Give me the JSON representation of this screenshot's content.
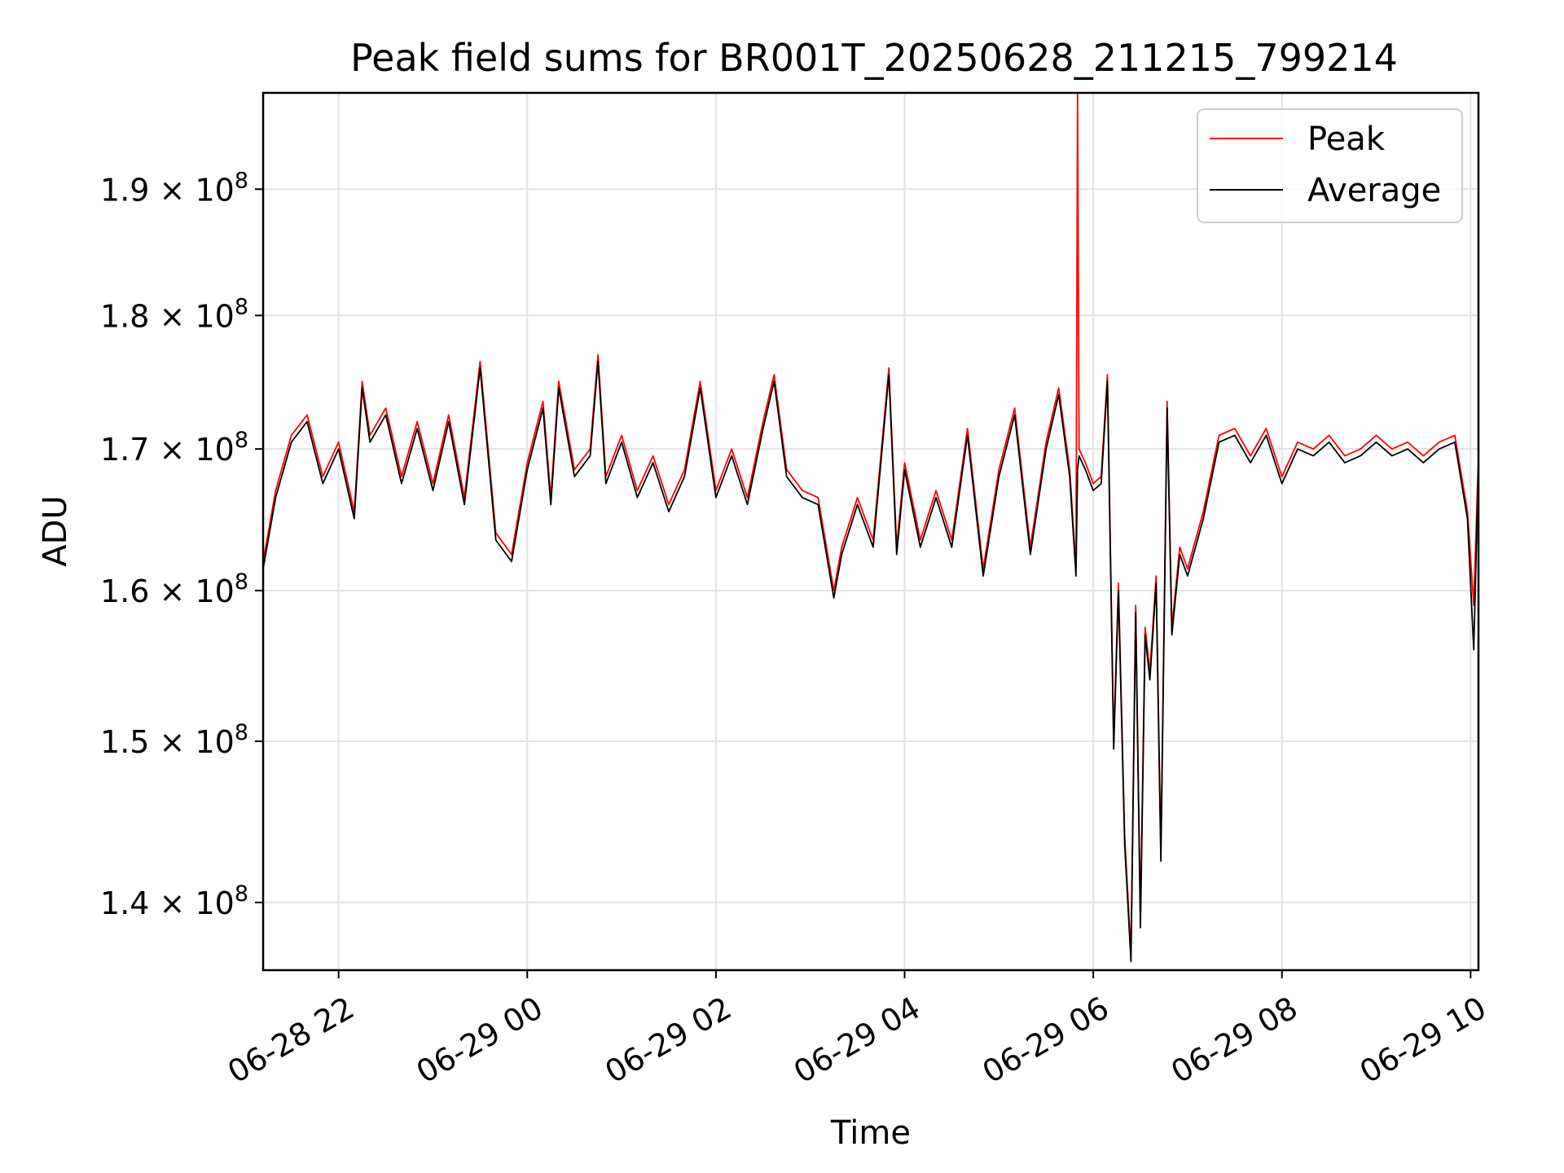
{
  "chart_data": {
    "type": "line",
    "title": "Peak field sums for BR001T_20250628_211215_799214",
    "xlabel": "Time",
    "ylabel": "ADU",
    "x_ticks": [
      "06-28 22",
      "06-29 00",
      "06-29 02",
      "06-29 04",
      "06-29 06",
      "06-29 08",
      "06-29 10"
    ],
    "y_ticks": [
      {
        "mantissa": "1.4",
        "exp": "8",
        "value": 140000000
      },
      {
        "mantissa": "1.5",
        "exp": "8",
        "value": 150000000
      },
      {
        "mantissa": "1.6",
        "exp": "8",
        "value": 160000000
      },
      {
        "mantissa": "1.7",
        "exp": "8",
        "value": 170000000
      },
      {
        "mantissa": "1.8",
        "exp": "8",
        "value": 180000000
      },
      {
        "mantissa": "1.9",
        "exp": "8",
        "value": 190000000
      }
    ],
    "y_scale": "log",
    "ylim": [
      136000000,
      198000000
    ],
    "x_range": [
      "2025-06-28 21:12",
      "2025-06-29 10:05"
    ],
    "grid": true,
    "legend_position": "upper right",
    "series": [
      {
        "name": "Peak",
        "color": "#ff0000",
        "x": [
          "2025-06-28 21:12",
          "2025-06-28 21:20",
          "2025-06-28 21:30",
          "2025-06-28 21:40",
          "2025-06-28 21:50",
          "2025-06-28 22:00",
          "2025-06-28 22:10",
          "2025-06-28 22:15",
          "2025-06-28 22:20",
          "2025-06-28 22:30",
          "2025-06-28 22:40",
          "2025-06-28 22:50",
          "2025-06-28 23:00",
          "2025-06-28 23:10",
          "2025-06-28 23:20",
          "2025-06-28 23:30",
          "2025-06-28 23:40",
          "2025-06-28 23:50",
          "2025-06-29 00:00",
          "2025-06-29 00:10",
          "2025-06-29 00:15",
          "2025-06-29 00:20",
          "2025-06-29 00:30",
          "2025-06-29 00:40",
          "2025-06-29 00:45",
          "2025-06-29 00:50",
          "2025-06-29 01:00",
          "2025-06-29 01:10",
          "2025-06-29 01:20",
          "2025-06-29 01:30",
          "2025-06-29 01:40",
          "2025-06-29 01:50",
          "2025-06-29 02:00",
          "2025-06-29 02:10",
          "2025-06-29 02:20",
          "2025-06-29 02:30",
          "2025-06-29 02:37",
          "2025-06-29 02:45",
          "2025-06-29 02:55",
          "2025-06-29 03:05",
          "2025-06-29 03:15",
          "2025-06-29 03:20",
          "2025-06-29 03:30",
          "2025-06-29 03:40",
          "2025-06-29 03:50",
          "2025-06-29 03:55",
          "2025-06-29 04:00",
          "2025-06-29 04:10",
          "2025-06-29 04:20",
          "2025-06-29 04:30",
          "2025-06-29 04:40",
          "2025-06-29 04:50",
          "2025-06-29 05:00",
          "2025-06-29 05:10",
          "2025-06-29 05:20",
          "2025-06-29 05:30",
          "2025-06-29 05:38",
          "2025-06-29 05:45",
          "2025-06-29 05:49",
          "2025-06-29 05:50",
          "2025-06-29 05:51",
          "2025-06-29 05:55",
          "2025-06-29 06:00",
          "2025-06-29 06:05",
          "2025-06-29 06:09",
          "2025-06-29 06:13",
          "2025-06-29 06:16",
          "2025-06-29 06:20",
          "2025-06-29 06:24",
          "2025-06-29 06:27",
          "2025-06-29 06:30",
          "2025-06-29 06:33",
          "2025-06-29 06:36",
          "2025-06-29 06:40",
          "2025-06-29 06:43",
          "2025-06-29 06:47",
          "2025-06-29 06:50",
          "2025-06-29 06:55",
          "2025-06-29 07:00",
          "2025-06-29 07:10",
          "2025-06-29 07:20",
          "2025-06-29 07:30",
          "2025-06-29 07:40",
          "2025-06-29 07:50",
          "2025-06-29 08:00",
          "2025-06-29 08:10",
          "2025-06-29 08:20",
          "2025-06-29 08:30",
          "2025-06-29 08:40",
          "2025-06-29 08:50",
          "2025-06-29 09:00",
          "2025-06-29 09:10",
          "2025-06-29 09:20",
          "2025-06-29 09:30",
          "2025-06-29 09:40",
          "2025-06-29 09:50",
          "2025-06-29 09:58",
          "2025-06-29 10:02",
          "2025-06-29 10:05"
        ],
        "y": [
          162000000,
          167000000,
          171000000,
          172500000,
          168000000,
          170500000,
          165500000,
          175000000,
          171000000,
          173000000,
          168000000,
          172000000,
          167500000,
          172500000,
          166500000,
          176500000,
          164000000,
          162500000,
          169000000,
          173500000,
          166500000,
          175000000,
          168500000,
          170000000,
          177000000,
          168000000,
          171000000,
          167000000,
          169500000,
          166000000,
          168500000,
          175000000,
          167000000,
          170000000,
          166500000,
          172000000,
          175500000,
          168500000,
          167000000,
          166500000,
          160000000,
          163000000,
          166500000,
          163500000,
          176000000,
          163000000,
          169000000,
          163500000,
          167000000,
          163500000,
          171500000,
          161500000,
          168500000,
          173000000,
          163000000,
          170500000,
          174500000,
          168500000,
          161500000,
          198000000,
          170000000,
          169000000,
          167500000,
          168000000,
          175500000,
          150000000,
          160500000,
          144000000,
          137000000,
          159000000,
          139000000,
          157500000,
          154500000,
          161000000,
          143000000,
          173500000,
          157500000,
          163000000,
          161500000,
          165500000,
          171000000,
          171500000,
          169500000,
          171500000,
          168000000,
          170500000,
          170000000,
          171000000,
          169500000,
          170000000,
          171000000,
          170000000,
          170500000,
          169500000,
          170500000,
          171000000,
          165500000,
          159000000,
          169500000
        ]
      },
      {
        "name": "Average",
        "color": "#000000",
        "x": [
          "2025-06-28 21:12",
          "2025-06-28 21:20",
          "2025-06-28 21:30",
          "2025-06-28 21:40",
          "2025-06-28 21:50",
          "2025-06-28 22:00",
          "2025-06-28 22:10",
          "2025-06-28 22:15",
          "2025-06-28 22:20",
          "2025-06-28 22:30",
          "2025-06-28 22:40",
          "2025-06-28 22:50",
          "2025-06-28 23:00",
          "2025-06-28 23:10",
          "2025-06-28 23:20",
          "2025-06-28 23:30",
          "2025-06-28 23:40",
          "2025-06-28 23:50",
          "2025-06-29 00:00",
          "2025-06-29 00:10",
          "2025-06-29 00:15",
          "2025-06-29 00:20",
          "2025-06-29 00:30",
          "2025-06-29 00:40",
          "2025-06-29 00:45",
          "2025-06-29 00:50",
          "2025-06-29 01:00",
          "2025-06-29 01:10",
          "2025-06-29 01:20",
          "2025-06-29 01:30",
          "2025-06-29 01:40",
          "2025-06-29 01:50",
          "2025-06-29 02:00",
          "2025-06-29 02:10",
          "2025-06-29 02:20",
          "2025-06-29 02:30",
          "2025-06-29 02:37",
          "2025-06-29 02:45",
          "2025-06-29 02:55",
          "2025-06-29 03:05",
          "2025-06-29 03:15",
          "2025-06-29 03:20",
          "2025-06-29 03:30",
          "2025-06-29 03:40",
          "2025-06-29 03:50",
          "2025-06-29 03:55",
          "2025-06-29 04:00",
          "2025-06-29 04:10",
          "2025-06-29 04:20",
          "2025-06-29 04:30",
          "2025-06-29 04:40",
          "2025-06-29 04:50",
          "2025-06-29 05:00",
          "2025-06-29 05:10",
          "2025-06-29 05:20",
          "2025-06-29 05:30",
          "2025-06-29 05:38",
          "2025-06-29 05:45",
          "2025-06-29 05:49",
          "2025-06-29 05:50",
          "2025-06-29 05:51",
          "2025-06-29 05:55",
          "2025-06-29 06:00",
          "2025-06-29 06:05",
          "2025-06-29 06:09",
          "2025-06-29 06:13",
          "2025-06-29 06:16",
          "2025-06-29 06:20",
          "2025-06-29 06:24",
          "2025-06-29 06:27",
          "2025-06-29 06:30",
          "2025-06-29 06:33",
          "2025-06-29 06:36",
          "2025-06-29 06:40",
          "2025-06-29 06:43",
          "2025-06-29 06:47",
          "2025-06-29 06:50",
          "2025-06-29 06:55",
          "2025-06-29 07:00",
          "2025-06-29 07:10",
          "2025-06-29 07:20",
          "2025-06-29 07:30",
          "2025-06-29 07:40",
          "2025-06-29 07:50",
          "2025-06-29 08:00",
          "2025-06-29 08:10",
          "2025-06-29 08:20",
          "2025-06-29 08:30",
          "2025-06-29 08:40",
          "2025-06-29 08:50",
          "2025-06-29 09:00",
          "2025-06-29 09:10",
          "2025-06-29 09:20",
          "2025-06-29 09:30",
          "2025-06-29 09:40",
          "2025-06-29 09:50",
          "2025-06-29 09:58",
          "2025-06-29 10:02",
          "2025-06-29 10:05"
        ],
        "y": [
          161500000,
          166500000,
          170500000,
          172000000,
          167500000,
          170000000,
          165000000,
          174500000,
          170500000,
          172500000,
          167500000,
          171500000,
          167000000,
          172000000,
          166000000,
          176000000,
          163500000,
          162000000,
          168500000,
          173000000,
          166000000,
          174500000,
          168000000,
          169500000,
          176500000,
          167500000,
          170500000,
          166500000,
          169000000,
          165500000,
          168000000,
          174500000,
          166500000,
          169500000,
          166000000,
          171500000,
          175000000,
          168000000,
          166500000,
          166000000,
          159500000,
          162500000,
          166000000,
          163000000,
          175500000,
          162500000,
          168500000,
          163000000,
          166500000,
          163000000,
          171000000,
          161000000,
          168000000,
          172500000,
          162500000,
          170000000,
          174000000,
          168000000,
          161000000,
          168500000,
          169500000,
          168500000,
          167000000,
          167500000,
          175000000,
          149500000,
          160000000,
          143500000,
          136500000,
          158500000,
          138500000,
          157000000,
          154000000,
          160500000,
          142500000,
          173000000,
          157000000,
          162500000,
          161000000,
          165000000,
          170500000,
          171000000,
          169000000,
          171000000,
          167500000,
          170000000,
          169500000,
          170500000,
          169000000,
          169500000,
          170500000,
          169500000,
          170000000,
          169000000,
          170000000,
          170500000,
          165000000,
          156000000,
          169000000
        ]
      }
    ]
  }
}
